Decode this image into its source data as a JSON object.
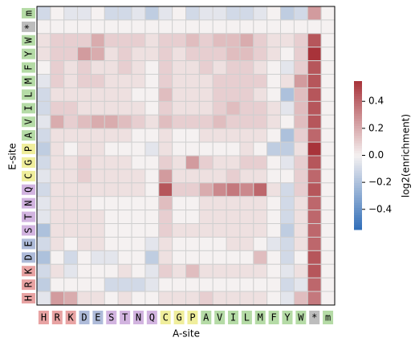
{
  "chart_data": {
    "type": "heatmap",
    "xlabel": "A-site",
    "ylabel": "E-site",
    "colorbar_label": "log2(enrichment)",
    "x_categories": [
      "H",
      "R",
      "K",
      "D",
      "E",
      "S",
      "T",
      "N",
      "Q",
      "C",
      "G",
      "P",
      "A",
      "V",
      "I",
      "L",
      "M",
      "F",
      "Y",
      "W",
      "*",
      "m"
    ],
    "y_categories": [
      "m",
      "*",
      "W",
      "Y",
      "F",
      "M",
      "L",
      "I",
      "V",
      "A",
      "P",
      "G",
      "C",
      "Q",
      "N",
      "T",
      "S",
      "E",
      "D",
      "K",
      "R",
      "H"
    ],
    "category_colors": [
      "#e8a3a3",
      "#e8a3a3",
      "#e8a3a3",
      "#aebbd9",
      "#aebbd9",
      "#d2b4e0",
      "#d2b4e0",
      "#d2b4e0",
      "#d2b4e0",
      "#f0ee9c",
      "#f0ee9c",
      "#f0ee9c",
      "#b5dba6",
      "#b5dba6",
      "#b5dba6",
      "#b5dba6",
      "#b5dba6",
      "#b5dba6",
      "#b5dba6",
      "#b5dba6",
      "#bdbdbd",
      "#b5dba6"
    ],
    "values": [
      [
        -0.1,
        0,
        -0.05,
        -0.05,
        0,
        -0.1,
        -0.1,
        -0.05,
        -0.15,
        -0.05,
        0,
        -0.1,
        -0.05,
        -0.05,
        -0.1,
        -0.1,
        -0.05,
        0,
        -0.15,
        -0.1,
        0.25,
        0
      ],
      [
        0,
        0,
        0,
        0,
        0,
        0,
        0,
        0,
        0,
        0,
        0,
        0,
        0,
        0,
        0,
        0,
        0,
        0,
        0,
        0,
        0,
        0
      ],
      [
        0.05,
        0.1,
        0.1,
        0.1,
        0.2,
        0.1,
        0.1,
        0.1,
        0.05,
        0.1,
        0.1,
        0.15,
        0.1,
        0.15,
        0.15,
        0.2,
        0.1,
        0.05,
        0.05,
        0.1,
        0.45,
        0
      ],
      [
        0.05,
        0.1,
        0.1,
        0.25,
        0.2,
        0.05,
        0.1,
        0.05,
        0.05,
        0.1,
        0.05,
        0.1,
        0.1,
        0.1,
        0.15,
        0.15,
        0.1,
        0.05,
        0,
        0.1,
        0.55,
        0
      ],
      [
        0,
        0.1,
        0.05,
        0.1,
        0.05,
        0.05,
        0.1,
        0.05,
        0,
        0.1,
        0.05,
        0.05,
        0.1,
        0.05,
        0.1,
        0.1,
        0.05,
        0,
        -0.05,
        0.1,
        0.45,
        0
      ],
      [
        -0.05,
        0.1,
        0.05,
        0.1,
        0.1,
        0.05,
        0.05,
        0.05,
        0,
        0.1,
        0.05,
        0.05,
        0.05,
        0.1,
        0.1,
        0.1,
        0.1,
        0,
        0.05,
        0.25,
        0.45,
        0
      ],
      [
        -0.1,
        0.05,
        0.05,
        0.05,
        0.05,
        0.05,
        0.05,
        0,
        0,
        0.15,
        0.05,
        0.05,
        0.05,
        0.1,
        0.1,
        0.1,
        0.05,
        0,
        -0.2,
        0.15,
        0.45,
        0
      ],
      [
        -0.1,
        0.1,
        0.1,
        0.05,
        0.05,
        0.05,
        0.05,
        0.05,
        0,
        0.1,
        0.05,
        0.05,
        0.05,
        0.1,
        0.15,
        0.1,
        0.1,
        0.05,
        -0.05,
        0.15,
        0.45,
        0
      ],
      [
        -0.05,
        0.2,
        0.1,
        0.15,
        0.2,
        0.2,
        0.15,
        0.1,
        0.05,
        0.15,
        0.1,
        0.1,
        0.1,
        0.15,
        0.1,
        0.1,
        0.1,
        0.05,
        0,
        0.15,
        0.45,
        0
      ],
      [
        -0.1,
        0.05,
        0.05,
        0.05,
        0.05,
        0.05,
        0.05,
        0,
        0,
        0.05,
        0,
        0,
        0.05,
        0.05,
        0.05,
        0.05,
        0.05,
        0,
        -0.2,
        0.1,
        0.4,
        0
      ],
      [
        -0.15,
        0.05,
        0,
        0.05,
        0.05,
        0,
        0,
        0,
        -0.05,
        0.05,
        0,
        0,
        0,
        0,
        0,
        0.05,
        0,
        -0.15,
        -0.15,
        0.05,
        0.55,
        0
      ],
      [
        -0.1,
        0.05,
        0.05,
        0.1,
        0.05,
        0.05,
        0.05,
        0,
        0,
        0.1,
        0.05,
        0.25,
        0.1,
        0.05,
        0.05,
        0.1,
        0.1,
        0,
        -0.05,
        0.1,
        0.45,
        0
      ],
      [
        -0.05,
        0.05,
        0.05,
        0.1,
        0.05,
        0.05,
        0.05,
        0.05,
        0,
        0.25,
        0.05,
        0.05,
        0.05,
        0.05,
        0.1,
        0.05,
        0.05,
        0,
        0,
        0.1,
        0.4,
        0
      ],
      [
        -0.1,
        0.05,
        0.05,
        0.05,
        0.05,
        0.05,
        0.05,
        0.05,
        0,
        0.45,
        0.1,
        0.1,
        0.2,
        0.3,
        0.35,
        0.3,
        0.4,
        0.05,
        -0.1,
        0.1,
        0.45,
        0
      ],
      [
        -0.05,
        0.05,
        0.05,
        0.05,
        0,
        0,
        0,
        0,
        0,
        0.15,
        0,
        0,
        0.05,
        0.05,
        0.05,
        0.05,
        0.05,
        0,
        -0.1,
        0.05,
        0.4,
        0
      ],
      [
        -0.05,
        0.05,
        0.05,
        0.05,
        0.05,
        0,
        0,
        0,
        0,
        0.1,
        0,
        0,
        0.05,
        0.05,
        0.05,
        0.05,
        0.05,
        0,
        -0.1,
        0.05,
        0.4,
        0
      ],
      [
        -0.2,
        0.05,
        0.05,
        0.05,
        0.05,
        0,
        0,
        0,
        0,
        0.1,
        0.05,
        0.05,
        0.05,
        0.05,
        0.05,
        0.05,
        0.05,
        0,
        -0.15,
        0.05,
        0.4,
        0
      ],
      [
        -0.1,
        0.05,
        0,
        0.05,
        0.05,
        0,
        0,
        0,
        -0.05,
        0.05,
        0,
        0,
        0,
        0,
        0.05,
        0.05,
        0,
        -0.05,
        -0.1,
        0.05,
        0.4,
        0
      ],
      [
        -0.2,
        0,
        -0.1,
        0,
        -0.05,
        -0.05,
        0,
        0,
        -0.15,
        0.05,
        0,
        0,
        0,
        0,
        0,
        0,
        0.15,
        0,
        -0.1,
        0,
        0.45,
        0
      ],
      [
        -0.1,
        0.05,
        -0.05,
        0,
        0,
        0,
        0.05,
        0,
        -0.05,
        0.1,
        0.05,
        0.15,
        0.05,
        0.05,
        0.05,
        0.05,
        0.05,
        0,
        -0.05,
        0.05,
        0.45,
        0
      ],
      [
        -0.15,
        0,
        0,
        0,
        0,
        -0.1,
        -0.1,
        -0.1,
        -0.05,
        0,
        0,
        0,
        0,
        0,
        0,
        0,
        0,
        0,
        -0.1,
        -0.05,
        0.4,
        0
      ],
      [
        -0.05,
        0.25,
        0.2,
        0.05,
        0.05,
        0,
        0.05,
        0,
        0,
        0.05,
        0.05,
        0.05,
        0.1,
        0.05,
        0.05,
        0.05,
        0.05,
        0,
        -0.05,
        0.15,
        0.35,
        0
      ]
    ],
    "clim": [
      -0.55,
      0.55
    ],
    "colormap": [
      "#2f6db8",
      "#f5f1f1",
      "#a8333a"
    ],
    "cticks": [
      {
        "value": -0.4,
        "label": "−0.4"
      },
      {
        "value": -0.2,
        "label": "−0.2"
      },
      {
        "value": 0,
        "label": "0.0"
      },
      0.2,
      0.4
    ]
  }
}
